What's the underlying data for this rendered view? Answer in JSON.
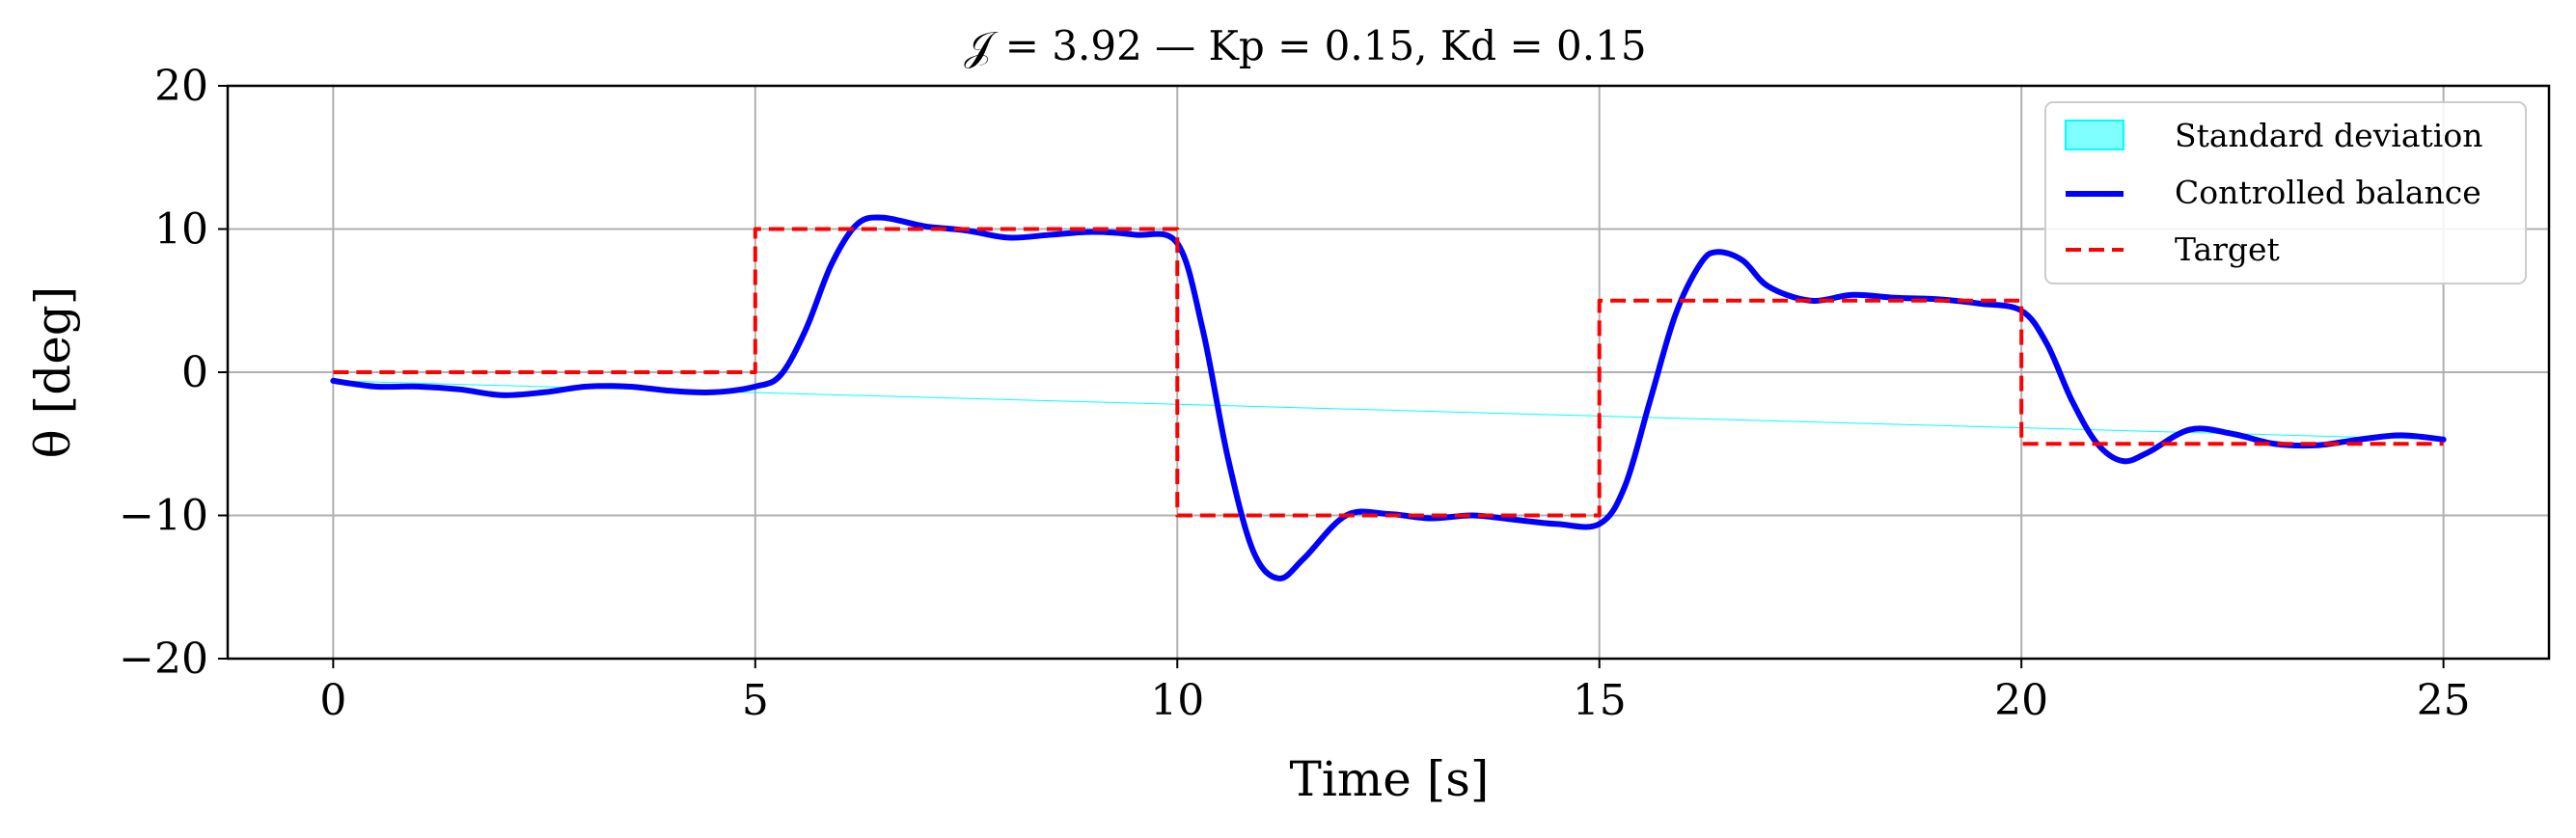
{
  "chart_data": {
    "type": "line",
    "title": "𝒥 = 3.92 — Kp = 0.15, Kd = 0.15",
    "xlabel": "Time [s]",
    "ylabel": "θ [deg]",
    "xlim": [
      -1.25,
      26.25
    ],
    "ylim": [
      -20,
      20
    ],
    "xticks": [
      0,
      5,
      10,
      15,
      20,
      25
    ],
    "yticks": [
      -20,
      -10,
      0,
      10,
      20
    ],
    "xtick_labels": [
      "0",
      "5",
      "10",
      "15",
      "20",
      "25"
    ],
    "ytick_labels": [
      "−20",
      "−10",
      "0",
      "10",
      "20"
    ],
    "grid": true,
    "legend_position": "top-right",
    "series": [
      {
        "name": "Standard deviation",
        "kind": "band",
        "color": "#00ffff",
        "x": [
          0,
          25
        ],
        "lower": [
          -0.6,
          -4.7
        ],
        "upper": [
          -0.6,
          -4.7
        ]
      },
      {
        "name": "Controlled balance",
        "kind": "line",
        "color": "#0000ff",
        "x": [
          0,
          0.5,
          1,
          1.5,
          2,
          2.5,
          3,
          3.5,
          4,
          4.5,
          5,
          5.3,
          5.6,
          5.9,
          6.2,
          6.5,
          7,
          7.5,
          8,
          8.5,
          9,
          9.5,
          10,
          10.3,
          10.6,
          10.9,
          11.2,
          11.5,
          12,
          12.5,
          13,
          13.5,
          14,
          14.5,
          15,
          15.3,
          15.6,
          15.9,
          16.2,
          16.4,
          16.7,
          17,
          17.5,
          18,
          18.5,
          19,
          19.5,
          20,
          20.3,
          20.6,
          20.9,
          21.2,
          21.5,
          22,
          22.5,
          23,
          23.5,
          24,
          24.5,
          25
        ],
        "y": [
          -0.6,
          -1.0,
          -1.0,
          -1.2,
          -1.6,
          -1.4,
          -1.0,
          -1.0,
          -1.3,
          -1.4,
          -1.0,
          -0.2,
          3.0,
          7.5,
          10.3,
          10.8,
          10.2,
          9.9,
          9.4,
          9.6,
          9.8,
          9.6,
          9.0,
          3.0,
          -6.0,
          -12.5,
          -14.4,
          -13.0,
          -10.0,
          -9.9,
          -10.2,
          -10.0,
          -10.3,
          -10.6,
          -10.6,
          -8.0,
          -2.0,
          4.0,
          7.6,
          8.4,
          7.8,
          6.0,
          5.0,
          5.4,
          5.2,
          5.1,
          4.8,
          4.3,
          2.0,
          -2.0,
          -5.0,
          -6.2,
          -5.6,
          -4.0,
          -4.3,
          -5.0,
          -5.1,
          -4.7,
          -4.4,
          -4.7
        ]
      },
      {
        "name": "Target",
        "kind": "step",
        "color": "#ff0000",
        "x": [
          0,
          5,
          5,
          10,
          10,
          15,
          15,
          20,
          20,
          25
        ],
        "y": [
          0,
          0,
          10,
          10,
          -10,
          -10,
          5,
          5,
          -5,
          -5
        ]
      }
    ]
  }
}
